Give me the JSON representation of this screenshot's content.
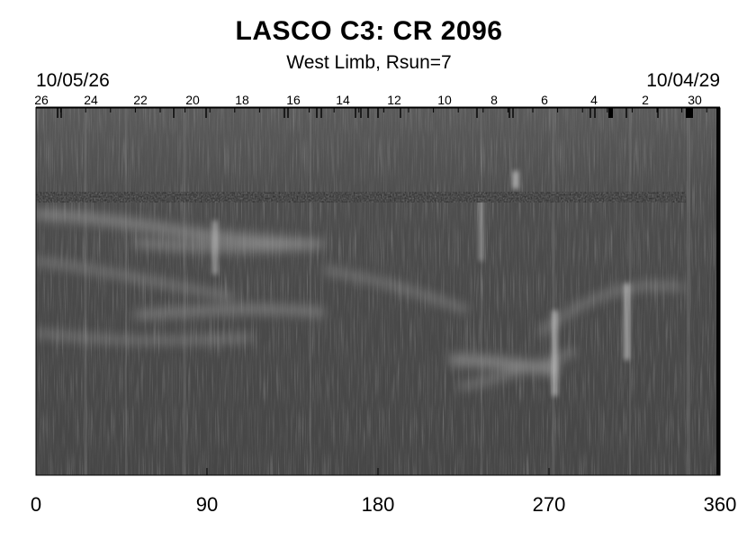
{
  "title": "LASCO C3: CR 2096",
  "subtitle": "West Limb, Rsun=7",
  "date_left": "10/05/26",
  "date_right": "10/04/29",
  "x_axis_ticks": [
    "0",
    "90",
    "180",
    "270",
    "360"
  ],
  "day_ticks": [
    "26",
    "24",
    "22",
    "20",
    "18",
    "16",
    "14",
    "12",
    "10",
    "8",
    "6",
    "4",
    "2",
    "30"
  ],
  "chart_data": {
    "type": "heatmap",
    "title": "LASCO C3: CR 2096",
    "subtitle": "West Limb, Rsun=7",
    "xlabel": "",
    "ylabel": "",
    "x_ticks": [
      0,
      90,
      180,
      270,
      360
    ],
    "xlim": [
      0,
      360
    ],
    "top_axis_labels": [
      "26",
      "24",
      "22",
      "20",
      "18",
      "16",
      "14",
      "12",
      "10",
      "8",
      "6",
      "4",
      "2",
      "30"
    ],
    "top_axis_start_date": "10/05/26",
    "top_axis_end_date": "10/04/29",
    "colormap": "grayscale"
  }
}
